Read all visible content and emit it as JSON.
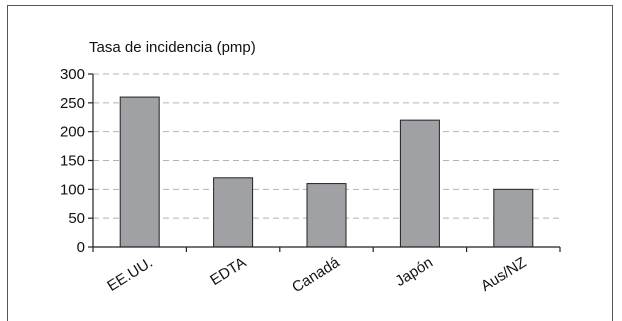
{
  "chart_data": {
    "type": "bar",
    "title": "Tasa de incidencia (pmp)",
    "xlabel": "",
    "ylabel": "",
    "categories": [
      "EE.UU.",
      "EDTA",
      "Canadá",
      "Japón",
      "Aus/NZ"
    ],
    "values": [
      260,
      120,
      110,
      220,
      100
    ],
    "ylim": [
      0,
      300
    ],
    "yticks": [
      0,
      50,
      100,
      150,
      200,
      250,
      300
    ],
    "grid": true,
    "colors": {
      "bar": "#a0a1a5",
      "bar_stroke": "#222222",
      "grid": "#b3b3b3",
      "axis": "#222222"
    }
  }
}
